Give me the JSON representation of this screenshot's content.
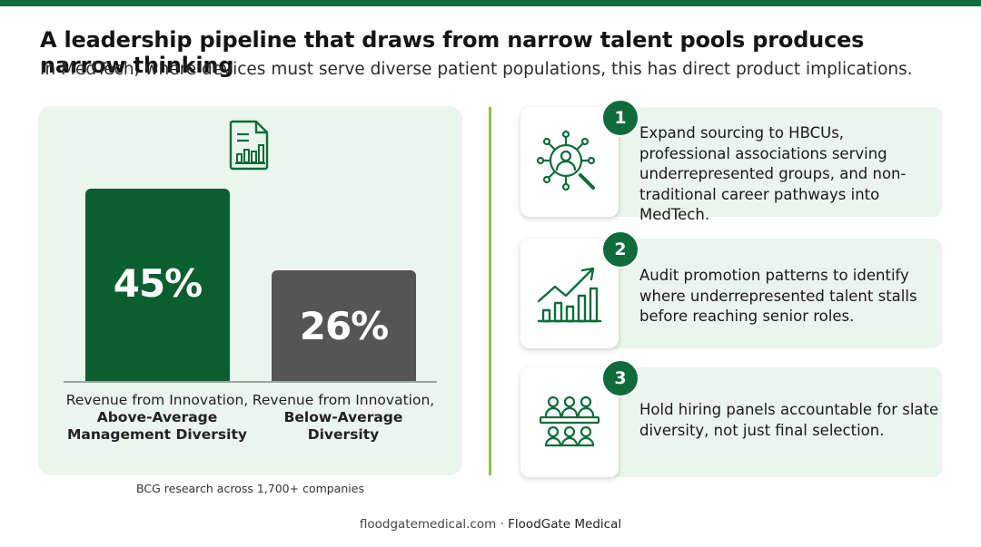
{
  "header": {
    "title": "A leadership pipeline that draws from narrow talent pools produces narrow thinking",
    "subtitle": "In MedTech, where devices must serve diverse patient populations, this has direct product implications."
  },
  "chart_data": {
    "type": "bar",
    "categories": [
      "Revenue from Innovation, Above-Average Management Diversity",
      "Revenue from Innovation, Below-Average Diversity"
    ],
    "values": [
      45,
      26
    ],
    "value_labels": [
      "45%",
      "26%"
    ],
    "label_lines": [
      {
        "line1": "Revenue from Innovation,",
        "line2": "Above-Average",
        "line3": "Management Diversity"
      },
      {
        "line1": "Revenue from Innovation,",
        "line2": "Below-Average",
        "line3": "Diversity"
      }
    ],
    "colors": [
      "#0b5e2f",
      "#555555"
    ],
    "ylim": [
      0,
      45
    ],
    "grid": false
  },
  "source_note": "BCG research across 1,700+ companies",
  "actions": [
    {
      "number": "1",
      "icon": "network-search-icon",
      "text": "Expand sourcing to HBCUs, professional associations serving underrepresented groups, and non-traditional career pathways into MedTech."
    },
    {
      "number": "2",
      "icon": "growth-chart-icon",
      "text": "Audit promotion patterns to identify where underrepresented talent stalls before reaching senior roles."
    },
    {
      "number": "3",
      "icon": "hiring-panel-icon",
      "text": "Hold hiring panels accountable for slate diversity, not just final selection."
    }
  ],
  "footer": {
    "site": "floodgatemedical.com",
    "separator": "·",
    "brand": "FloodGate Medical"
  },
  "colors": {
    "accent": "#0f6b3a",
    "panel_bg": "#eaf5ec",
    "divider": "#8bbf4a",
    "bar_secondary": "#555555"
  }
}
